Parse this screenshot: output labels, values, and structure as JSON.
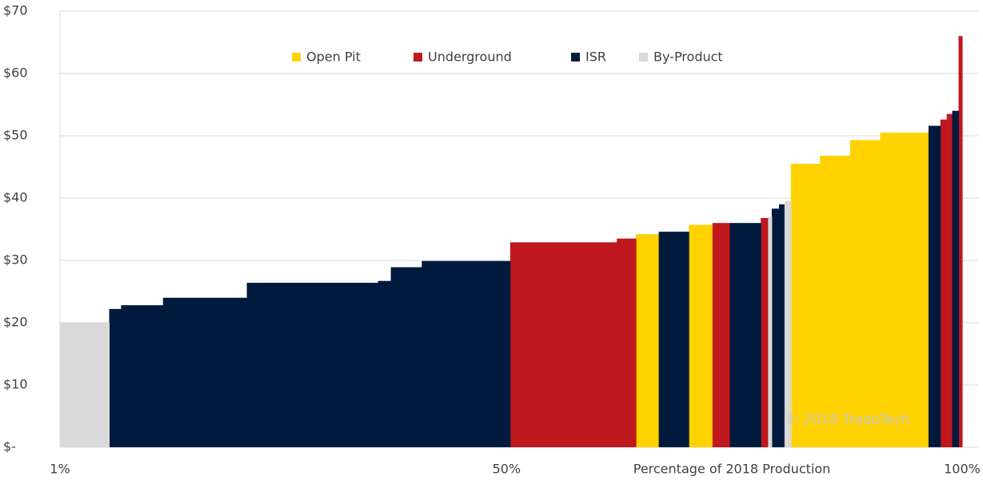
{
  "chart_data": {
    "type": "cost-curve",
    "xlabel": "Percentage of 2018 Production",
    "annotation": "© 2018 TradeTech",
    "xlim": [
      1,
      100
    ],
    "ylim": [
      0,
      70
    ],
    "xticks": [
      {
        "value": 1,
        "label": "1%"
      },
      {
        "value": 50,
        "label": "50%"
      },
      {
        "value": 100,
        "label": "100%"
      }
    ],
    "yticks": [
      {
        "value": 0,
        "label": "$-"
      },
      {
        "value": 10,
        "label": "$10"
      },
      {
        "value": 20,
        "label": "$20"
      },
      {
        "value": 30,
        "label": "$30"
      },
      {
        "value": 40,
        "label": "$40"
      },
      {
        "value": 50,
        "label": "$50"
      },
      {
        "value": 60,
        "label": "$60"
      },
      {
        "value": 70,
        "label": "$70"
      }
    ],
    "grid": true,
    "legend": "top",
    "series": [
      {
        "name": "Open Pit",
        "color": "#ffd200",
        "x_start": [
          64.2,
          70.0,
          81.2,
          84.4,
          87.7,
          91.0
        ],
        "x_end": [
          66.7,
          72.6,
          84.4,
          87.7,
          91.0,
          96.3
        ],
        "values": [
          34.2,
          35.7,
          45.5,
          46.8,
          49.3,
          50.5
        ]
      },
      {
        "name": "Underground",
        "color": "#c0181f",
        "x_start": [
          50.4,
          62.1,
          72.6,
          77.9,
          97.6,
          98.3,
          99.6
        ],
        "x_end": [
          62.1,
          64.2,
          74.5,
          78.7,
          98.3,
          98.9,
          100
        ],
        "values": [
          32.9,
          33.5,
          36.0,
          36.8,
          52.6,
          53.5,
          66.0
        ]
      },
      {
        "name": "ISR",
        "color": "#001a3d",
        "x_start": [
          6.4,
          7.7,
          12.3,
          21.5,
          35.9,
          37.3,
          40.7,
          66.7,
          74.5,
          79.1,
          79.9,
          96.3,
          98.9
        ],
        "x_end": [
          7.7,
          12.3,
          21.5,
          35.9,
          37.3,
          40.7,
          50.4,
          70.0,
          77.9,
          79.9,
          80.5,
          97.6,
          99.6
        ],
        "values": [
          22.2,
          22.8,
          24.0,
          26.4,
          26.7,
          28.9,
          29.9,
          34.6,
          36.0,
          38.3,
          39.0,
          51.6,
          54.0
        ]
      },
      {
        "name": "By-Product",
        "color": "#d9d9d9",
        "x_start": [
          1,
          78.7,
          80.5
        ],
        "x_end": [
          6.4,
          79.1,
          81.2
        ],
        "values": [
          20.0,
          37.0,
          39.5
        ]
      }
    ]
  }
}
